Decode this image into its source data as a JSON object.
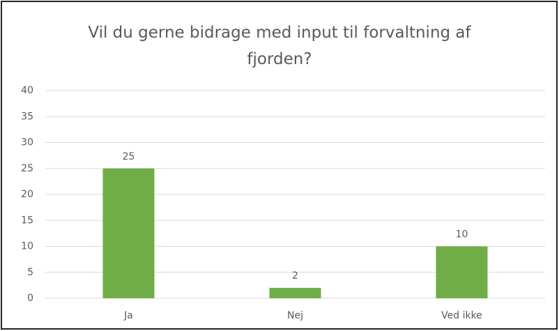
{
  "chart_data": {
    "type": "bar",
    "title": "Vil du gerne bidrage med input til forvaltning af fjorden?",
    "categories": [
      "Ja",
      "Nej",
      "Ved ikke"
    ],
    "values": [
      25,
      2,
      10
    ],
    "color": "#70ad47",
    "ylim": [
      0,
      40
    ],
    "yticks": [
      0,
      5,
      10,
      15,
      20,
      25,
      30,
      35,
      40
    ],
    "grid": true,
    "data_labels": true
  }
}
